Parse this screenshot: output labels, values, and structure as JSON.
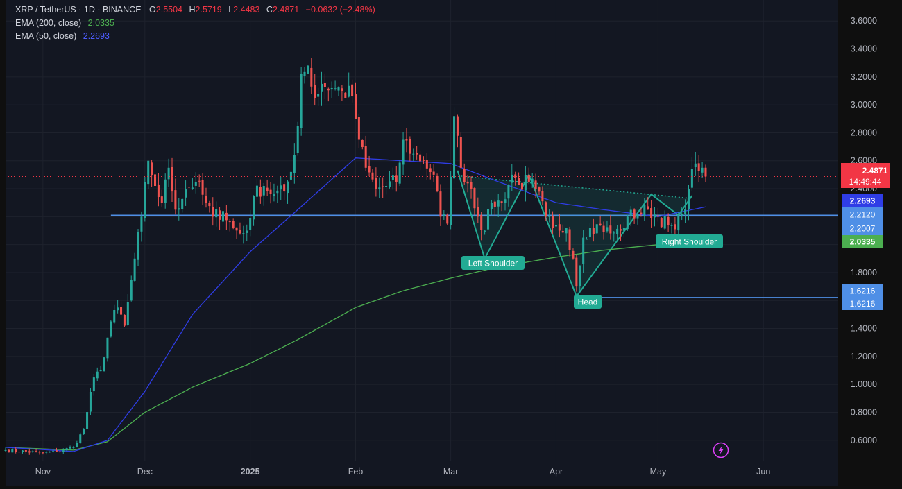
{
  "header": {
    "symbol": "XRP / TetherUS · 1D · BINANCE",
    "o_label": "O",
    "o_value": "2.5504",
    "h_label": "H",
    "h_value": "2.5719",
    "l_label": "L",
    "l_value": "2.4483",
    "c_label": "C",
    "c_value": "2.4871",
    "change": "−0.0632 (−2.48%)",
    "ema200_label": "EMA (200, close)",
    "ema200_value": "2.0335",
    "ema50_label": "EMA (50, close)",
    "ema50_value": "2.2693"
  },
  "colors": {
    "background": "#131722",
    "up": "#26a69a",
    "down": "#ef5350",
    "ema200": "#4caf50",
    "ema50": "#2f3de6",
    "support": "#4f8fe6",
    "pattern": "#22ab94",
    "price_line": "#f23645"
  },
  "price_labels": {
    "last": "2.4871",
    "countdown": "14:49:44",
    "ema50": "2.2693",
    "neck_1": "2.2120",
    "neck_2": "2.2007",
    "ema200": "2.0335",
    "low_1": "1.6216",
    "low_2": "1.6216"
  },
  "annotations": {
    "left_shoulder": "Left Shoulder",
    "head": "Head",
    "right_shoulder": "Right Shoulder"
  },
  "chart_data": {
    "type": "candlestick",
    "ylim": [
      0.45,
      3.75
    ],
    "yticks": [
      "3.6000",
      "3.4000",
      "3.2000",
      "3.0000",
      "2.8000",
      "2.6000",
      "2.4000",
      "2.2000",
      "2.0000",
      "1.8000",
      "1.6000",
      "1.4000",
      "1.2000",
      "1.0000",
      "0.8000",
      "0.6000"
    ],
    "xticks": [
      "Nov",
      "Dec",
      "2025",
      "Feb",
      "Mar",
      "Apr",
      "May",
      "Jun"
    ],
    "xtick_dates": [
      "2024-11-01",
      "2024-12-01",
      "2025-01-01",
      "2025-02-01",
      "2025-03-01",
      "2025-04-01",
      "2025-05-01",
      "2025-06-01"
    ],
    "xlim": [
      "2024-10-21",
      "2025-06-23"
    ],
    "close_anchors": [
      [
        "2024-10-21",
        0.53
      ],
      [
        "2024-11-01",
        0.51
      ],
      [
        "2024-11-05",
        0.52
      ],
      [
        "2024-11-10",
        0.55
      ],
      [
        "2024-11-13",
        0.68
      ],
      [
        "2024-11-16",
        1.05
      ],
      [
        "2024-11-18",
        1.1
      ],
      [
        "2024-11-21",
        1.45
      ],
      [
        "2024-11-23",
        1.55
      ],
      [
        "2024-11-25",
        1.42
      ],
      [
        "2024-11-28",
        1.9
      ],
      [
        "2024-11-30",
        2.2
      ],
      [
        "2024-12-02",
        2.6
      ],
      [
        "2024-12-04",
        2.42
      ],
      [
        "2024-12-06",
        2.3
      ],
      [
        "2024-12-08",
        2.55
      ],
      [
        "2024-12-10",
        2.25
      ],
      [
        "2024-12-13",
        2.4
      ],
      [
        "2024-12-16",
        2.45
      ],
      [
        "2024-12-19",
        2.3
      ],
      [
        "2024-12-21",
        2.2
      ],
      [
        "2024-12-24",
        2.24
      ],
      [
        "2024-12-27",
        2.12
      ],
      [
        "2024-12-29",
        2.08
      ],
      [
        "2024-12-31",
        2.1
      ],
      [
        "2025-01-02",
        2.35
      ],
      [
        "2025-01-05",
        2.42
      ],
      [
        "2025-01-08",
        2.36
      ],
      [
        "2025-01-11",
        2.38
      ],
      [
        "2025-01-13",
        2.52
      ],
      [
        "2025-01-15",
        2.85
      ],
      [
        "2025-01-16",
        3.22
      ],
      [
        "2025-01-18",
        3.28
      ],
      [
        "2025-01-20",
        3.05
      ],
      [
        "2025-01-22",
        3.15
      ],
      [
        "2025-01-25",
        3.12
      ],
      [
        "2025-01-28",
        3.1
      ],
      [
        "2025-01-31",
        3.06
      ],
      [
        "2025-02-02",
        2.75
      ],
      [
        "2025-02-04",
        2.55
      ],
      [
        "2025-02-07",
        2.4
      ],
      [
        "2025-02-10",
        2.42
      ],
      [
        "2025-02-13",
        2.45
      ],
      [
        "2025-02-15",
        2.75
      ],
      [
        "2025-02-18",
        2.65
      ],
      [
        "2025-02-21",
        2.6
      ],
      [
        "2025-02-24",
        2.5
      ],
      [
        "2025-02-26",
        2.2
      ],
      [
        "2025-02-28",
        2.15
      ],
      [
        "2025-03-02",
        2.92
      ],
      [
        "2025-03-04",
        2.55
      ],
      [
        "2025-03-07",
        2.4
      ],
      [
        "2025-03-09",
        2.2
      ],
      [
        "2025-03-11",
        2.1
      ],
      [
        "2025-03-13",
        2.3
      ],
      [
        "2025-03-16",
        2.3
      ],
      [
        "2025-03-19",
        2.5
      ],
      [
        "2025-03-21",
        2.43
      ],
      [
        "2025-03-24",
        2.45
      ],
      [
        "2025-03-26",
        2.4
      ],
      [
        "2025-03-29",
        2.2
      ],
      [
        "2025-03-31",
        2.12
      ],
      [
        "2025-04-02",
        2.1
      ],
      [
        "2025-04-04",
        2.12
      ],
      [
        "2025-04-06",
        1.9
      ],
      [
        "2025-04-07",
        1.7
      ],
      [
        "2025-04-09",
        2.05
      ],
      [
        "2025-04-11",
        2.12
      ],
      [
        "2025-04-14",
        2.14
      ],
      [
        "2025-04-17",
        2.08
      ],
      [
        "2025-04-20",
        2.1
      ],
      [
        "2025-04-22",
        2.2
      ],
      [
        "2025-04-25",
        2.22
      ],
      [
        "2025-04-28",
        2.25
      ],
      [
        "2025-05-01",
        2.2
      ],
      [
        "2025-05-04",
        2.14
      ],
      [
        "2025-05-06",
        2.11
      ],
      [
        "2025-05-08",
        2.22
      ],
      [
        "2025-05-10",
        2.4
      ],
      [
        "2025-05-12",
        2.58
      ],
      [
        "2025-05-14",
        2.55
      ],
      [
        "2025-05-15",
        2.4871
      ]
    ],
    "ema200_anchors": [
      [
        "2024-10-21",
        0.55
      ],
      [
        "2024-11-10",
        0.53
      ],
      [
        "2024-11-20",
        0.59
      ],
      [
        "2024-12-01",
        0.8
      ],
      [
        "2024-12-15",
        0.98
      ],
      [
        "2025-01-01",
        1.15
      ],
      [
        "2025-01-15",
        1.32
      ],
      [
        "2025-02-01",
        1.55
      ],
      [
        "2025-02-15",
        1.67
      ],
      [
        "2025-03-01",
        1.76
      ],
      [
        "2025-03-15",
        1.84
      ],
      [
        "2025-04-01",
        1.91
      ],
      [
        "2025-04-15",
        1.96
      ],
      [
        "2025-05-01",
        2.0
      ],
      [
        "2025-05-15",
        2.035
      ]
    ],
    "ema50_anchors": [
      [
        "2024-10-21",
        0.55
      ],
      [
        "2024-11-10",
        0.52
      ],
      [
        "2024-11-20",
        0.6
      ],
      [
        "2024-12-01",
        0.95
      ],
      [
        "2024-12-15",
        1.5
      ],
      [
        "2025-01-01",
        1.95
      ],
      [
        "2025-01-15",
        2.25
      ],
      [
        "2025-02-01",
        2.62
      ],
      [
        "2025-02-15",
        2.6
      ],
      [
        "2025-03-01",
        2.58
      ],
      [
        "2025-03-15",
        2.45
      ],
      [
        "2025-04-01",
        2.3
      ],
      [
        "2025-04-15",
        2.25
      ],
      [
        "2025-05-01",
        2.2
      ],
      [
        "2025-05-15",
        2.27
      ]
    ],
    "support_levels": [
      {
        "value": 2.21,
        "from": "2024-11-21",
        "to": "2025-06-23"
      },
      {
        "value": 1.6216,
        "from": "2025-04-07",
        "to": "2025-06-23"
      }
    ],
    "head_and_shoulders": {
      "points": [
        [
          "2025-03-03",
          2.53
        ],
        [
          "2025-03-11",
          1.9
        ],
        [
          "2025-03-24",
          2.5
        ],
        [
          "2025-04-07",
          1.63
        ],
        [
          "2025-04-29",
          2.36
        ],
        [
          "2025-05-07",
          2.21
        ],
        [
          "2025-05-11",
          2.35
        ]
      ],
      "neckline": [
        [
          "2025-03-04",
          2.49
        ],
        [
          "2025-05-11",
          2.33
        ]
      ]
    }
  }
}
